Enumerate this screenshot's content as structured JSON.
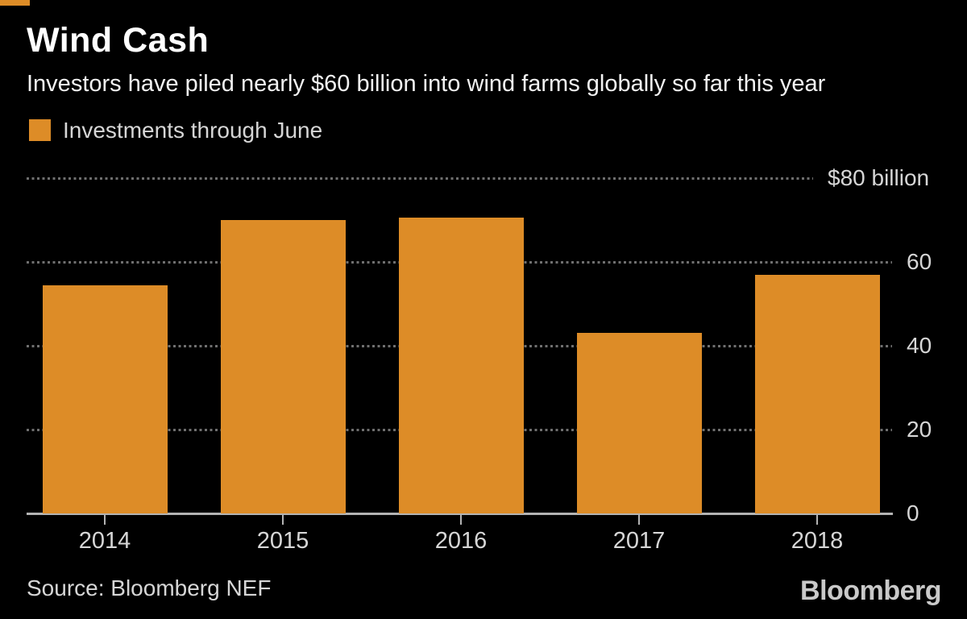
{
  "header": {
    "title": "Wind Cash",
    "subtitle": "Investors have piled nearly $60 billion into wind farms globally so far this year"
  },
  "legend": {
    "label": "Investments through June",
    "swatch_color": "#DD8C27"
  },
  "chart_data": {
    "type": "bar",
    "title": "Wind Cash",
    "subtitle": "Investors have piled nearly $60 billion into wind farms globally so far this year",
    "series_name": "Investments through June",
    "categories": [
      "2014",
      "2015",
      "2016",
      "2017",
      "2018"
    ],
    "values": [
      54.5,
      70,
      70.5,
      43,
      57
    ],
    "unit": "billion USD",
    "xlabel": "",
    "ylabel": "",
    "ylim": [
      0,
      80
    ],
    "yticks": [
      {
        "value": 80,
        "label": "$80 billion"
      },
      {
        "value": 60,
        "label": "60"
      },
      {
        "value": 40,
        "label": "40"
      },
      {
        "value": 20,
        "label": "20"
      },
      {
        "value": 0,
        "label": "0"
      }
    ],
    "grid": "horizontal dotted",
    "ytick_side": "right",
    "legend_position": "top-left",
    "bar_color": "#DD8C27"
  },
  "footer": {
    "source": "Source: Bloomberg NEF",
    "logo": "Bloomberg"
  },
  "colors": {
    "background": "#000000",
    "bar": "#DD8C27",
    "accent_mark": "#DD8C27",
    "grid_dots": "#6F6F6F",
    "axis_line": "#B3B3B3",
    "title_text": "#FFFFFF",
    "secondary_text": "#D6D6D6",
    "logo_text": "#C9C9C9"
  }
}
